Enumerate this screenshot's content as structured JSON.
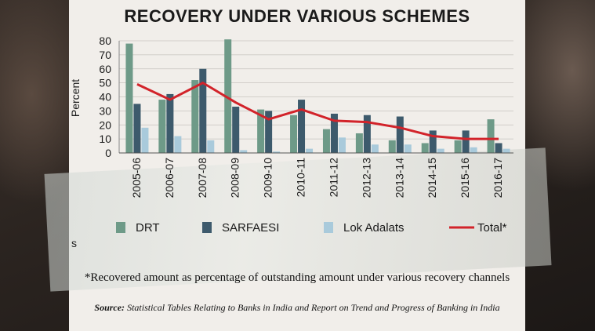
{
  "title": "RECOVERY UNDER VARIOUS SCHEMES",
  "chart_data": {
    "type": "bar",
    "title": "RECOVERY UNDER VARIOUS SCHEMES",
    "ylabel": "Percent",
    "xlabel": "",
    "ylim": [
      0,
      80
    ],
    "yticks": [
      0,
      10,
      20,
      30,
      40,
      50,
      60,
      70,
      80
    ],
    "categories": [
      "2005-06",
      "2006-07",
      "2007-08",
      "2008-09",
      "2009-10",
      "2010-11",
      "2011-12",
      "2012-13",
      "2013-14",
      "2014-15",
      "2015-16",
      "2016-17"
    ],
    "series": [
      {
        "name": "DRT",
        "kind": "bar",
        "color": "#6e9a88",
        "values": [
          78,
          38,
          52,
          81,
          31,
          27,
          17,
          14,
          9,
          7,
          9,
          24
        ]
      },
      {
        "name": "SARFAESI",
        "kind": "bar",
        "color": "#3d5a6c",
        "values": [
          35,
          42,
          60,
          33,
          30,
          38,
          28,
          27,
          26,
          16,
          16,
          7
        ]
      },
      {
        "name": "Lok Adalats",
        "kind": "bar",
        "color": "#a9cadb",
        "values": [
          18,
          12,
          9,
          2,
          1,
          3,
          11,
          6,
          6,
          3,
          4,
          3
        ]
      },
      {
        "name": "Total*",
        "kind": "line",
        "color": "#d2232a",
        "values": [
          49,
          38,
          50,
          36,
          24,
          31,
          23,
          22,
          18,
          12,
          10,
          10
        ]
      }
    ],
    "legend": [
      "DRT",
      "SARFAESI",
      "Lok Adalats",
      "Total*"
    ]
  },
  "footnote": "*Recovered amount as percentage of outstanding amount under various recovery channels",
  "source_label": "Source:",
  "source_text": "Statistical Tables Relating to Banks in India and Report on Trend and Progress of Banking in India",
  "stray_char": "s"
}
